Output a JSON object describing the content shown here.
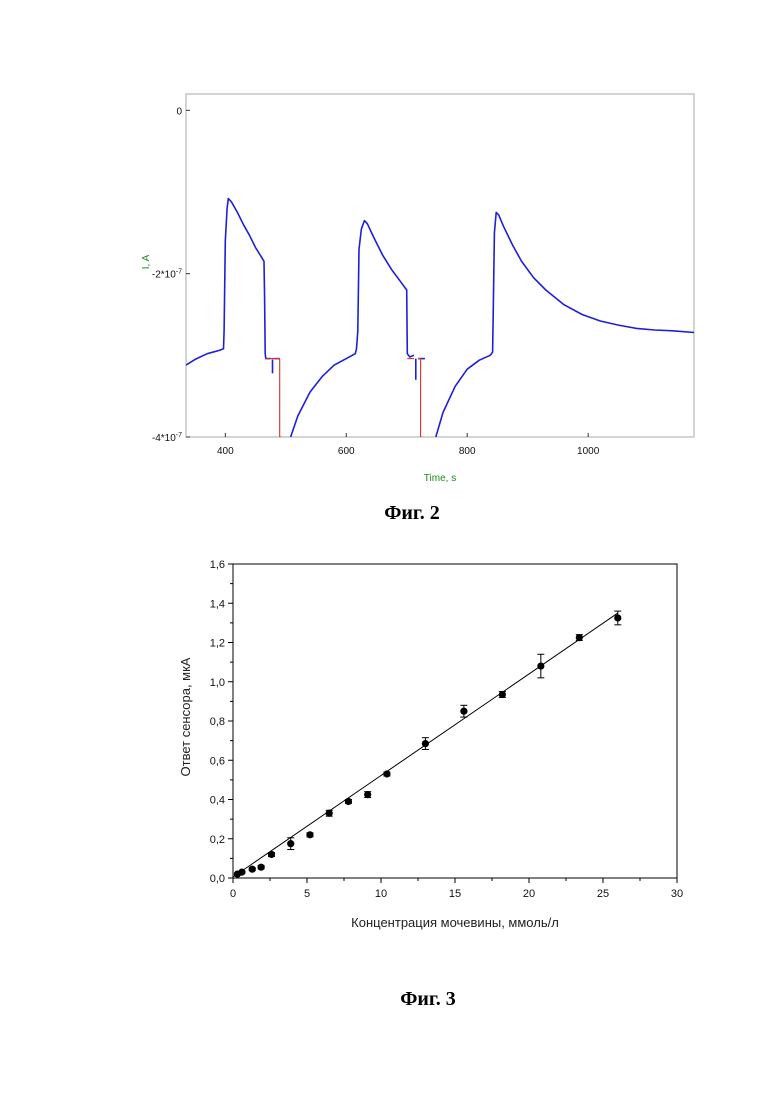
{
  "captions": {
    "fig2": "Фиг. 2",
    "fig3": "Фиг. 3"
  },
  "chart_data": [
    {
      "type": "line",
      "xlabel": "Time, s",
      "ylabel": "I, A",
      "xlim": [
        335,
        1175
      ],
      "ylim": [
        -4e-07,
        2e-08
      ],
      "x_ticks": [
        {
          "value": 400,
          "label": "400"
        },
        {
          "value": 600,
          "label": "600"
        },
        {
          "value": 800,
          "label": "800"
        },
        {
          "value": 1000,
          "label": "1000"
        }
      ],
      "y_ticks": [
        {
          "value": 0,
          "label": "0"
        },
        {
          "value": -2e-07,
          "label": "-2*10-7"
        },
        {
          "value": -4e-07,
          "label": "-4*10-7"
        }
      ],
      "colors": {
        "main": "#1f1fd8",
        "switch": "#d83030"
      },
      "series": [
        {
          "color": "#1f1fd8",
          "segments": [
            [
              [
                335,
                -3.12e-07
              ],
              [
                350,
                -3.05e-07
              ],
              [
                370,
                -2.98e-07
              ],
              [
                390,
                -2.94e-07
              ],
              [
                397,
                -2.92e-07
              ],
              [
                398,
                -2.7e-07
              ],
              [
                400,
                -1.6e-07
              ],
              [
                403,
                -1.2e-07
              ],
              [
                405,
                -1.08e-07
              ],
              [
                410,
                -1.12e-07
              ],
              [
                420,
                -1.25e-07
              ],
              [
                430,
                -1.4e-07
              ],
              [
                440,
                -1.53e-07
              ],
              [
                450,
                -1.68e-07
              ],
              [
                460,
                -1.8e-07
              ],
              [
                464,
                -1.85e-07
              ],
              [
                465,
                -2.3e-07
              ],
              [
                466,
                -2.98e-07
              ],
              [
                467,
                -3.04e-07
              ],
              [
                475,
                -3.04e-07
              ]
            ],
            [
              [
                478,
                -3.05e-07
              ],
              [
                478,
                -3.22e-07
              ]
            ],
            [
              [
                481,
                -3.04e-07
              ],
              [
                490,
                -3.04e-07
              ]
            ],
            [
              [
                508,
                -4e-07
              ],
              [
                520,
                -3.74e-07
              ],
              [
                540,
                -3.45e-07
              ],
              [
                560,
                -3.26e-07
              ],
              [
                580,
                -3.12e-07
              ],
              [
                600,
                -3.04e-07
              ],
              [
                615,
                -2.98e-07
              ],
              [
                617,
                -2.92e-07
              ],
              [
                619,
                -2.7e-07
              ],
              [
                621,
                -1.7e-07
              ],
              [
                625,
                -1.45e-07
              ],
              [
                630,
                -1.35e-07
              ],
              [
                635,
                -1.39e-07
              ],
              [
                645,
                -1.55e-07
              ],
              [
                660,
                -1.77e-07
              ],
              [
                675,
                -1.95e-07
              ],
              [
                690,
                -2.1e-07
              ],
              [
                700,
                -2.2e-07
              ],
              [
                701,
                -2.98e-07
              ],
              [
                705,
                -3.02e-07
              ],
              [
                712,
                -3e-07
              ]
            ],
            [
              [
                715,
                -3.04e-07
              ],
              [
                715,
                -3.3e-07
              ]
            ],
            [
              [
                719,
                -3.04e-07
              ],
              [
                730,
                -3.04e-07
              ]
            ],
            [
              [
                748,
                -4e-07
              ],
              [
                760,
                -3.7e-07
              ],
              [
                780,
                -3.38e-07
              ],
              [
                800,
                -3.17e-07
              ],
              [
                820,
                -3.06e-07
              ],
              [
                838,
                -3e-07
              ],
              [
                842,
                -2.96e-07
              ],
              [
                843,
                -2.5e-07
              ],
              [
                845,
                -1.5e-07
              ],
              [
                848,
                -1.25e-07
              ],
              [
                852,
                -1.28e-07
              ],
              [
                860,
                -1.42e-07
              ],
              [
                875,
                -1.65e-07
              ],
              [
                890,
                -1.85e-07
              ],
              [
                910,
                -2.05e-07
              ],
              [
                930,
                -2.2e-07
              ],
              [
                960,
                -2.38e-07
              ],
              [
                990,
                -2.5e-07
              ],
              [
                1020,
                -2.58e-07
              ],
              [
                1050,
                -2.63e-07
              ],
              [
                1080,
                -2.67e-07
              ],
              [
                1110,
                -2.69e-07
              ],
              [
                1140,
                -2.7e-07
              ],
              [
                1175,
                -2.72e-07
              ]
            ]
          ]
        },
        {
          "color": "#d83030",
          "segments": [
            [
              [
                467,
                -3.04e-07
              ],
              [
                490,
                -3.04e-07
              ],
              [
                490,
                -4e-07
              ],
              [
                493,
                -4e-07
              ]
            ],
            [
              [
                701,
                -3.04e-07
              ],
              [
                712,
                -3.04e-07
              ]
            ],
            [
              [
                719,
                -3.04e-07
              ],
              [
                723,
                -3.04e-07
              ],
              [
                723,
                -4e-07
              ],
              [
                726,
                -4e-07
              ]
            ]
          ]
        }
      ]
    },
    {
      "type": "scatter",
      "xlabel": "Концентрация мочевины, ммоль/л",
      "ylabel": "Ответ сенсора, мкА",
      "xlim": [
        0,
        30
      ],
      "ylim": [
        0,
        1.6
      ],
      "x_ticks": [
        {
          "value": 0,
          "label": "0"
        },
        {
          "value": 5,
          "label": "5"
        },
        {
          "value": 10,
          "label": "10"
        },
        {
          "value": 15,
          "label": "15"
        },
        {
          "value": 20,
          "label": "20"
        },
        {
          "value": 25,
          "label": "25"
        },
        {
          "value": 30,
          "label": "30"
        }
      ],
      "y_ticks": [
        {
          "value": 0,
          "label": "0,0"
        },
        {
          "value": 0.2,
          "label": "0,2"
        },
        {
          "value": 0.4,
          "label": "0,4"
        },
        {
          "value": 0.6,
          "label": "0,6"
        },
        {
          "value": 0.8,
          "label": "0,8"
        },
        {
          "value": 1.0,
          "label": "1,0"
        },
        {
          "value": 1.2,
          "label": "1,2"
        },
        {
          "value": 1.4,
          "label": "1,4"
        },
        {
          "value": 1.6,
          "label": "1,6"
        }
      ],
      "points": [
        {
          "x": 0.3,
          "y": 0.02,
          "err": 0.005
        },
        {
          "x": 0.6,
          "y": 0.03,
          "err": 0.005
        },
        {
          "x": 1.3,
          "y": 0.045,
          "err": 0.007
        },
        {
          "x": 1.9,
          "y": 0.055,
          "err": 0.008
        },
        {
          "x": 2.6,
          "y": 0.12,
          "err": 0.01
        },
        {
          "x": 3.9,
          "y": 0.175,
          "err": 0.03
        },
        {
          "x": 5.2,
          "y": 0.22,
          "err": 0.01
        },
        {
          "x": 6.5,
          "y": 0.33,
          "err": 0.015
        },
        {
          "x": 7.8,
          "y": 0.39,
          "err": 0.01
        },
        {
          "x": 9.1,
          "y": 0.425,
          "err": 0.015
        },
        {
          "x": 10.4,
          "y": 0.53,
          "err": 0.01
        },
        {
          "x": 13.0,
          "y": 0.685,
          "err": 0.03
        },
        {
          "x": 15.6,
          "y": 0.85,
          "err": 0.03
        },
        {
          "x": 18.2,
          "y": 0.935,
          "err": 0.015
        },
        {
          "x": 20.8,
          "y": 1.08,
          "err": 0.06
        },
        {
          "x": 23.4,
          "y": 1.225,
          "err": 0.015
        },
        {
          "x": 26.0,
          "y": 1.325,
          "err": 0.035
        }
      ],
      "fit_line": {
        "x": [
          0,
          26
        ],
        "y": [
          0.005,
          1.35
        ]
      }
    }
  ]
}
